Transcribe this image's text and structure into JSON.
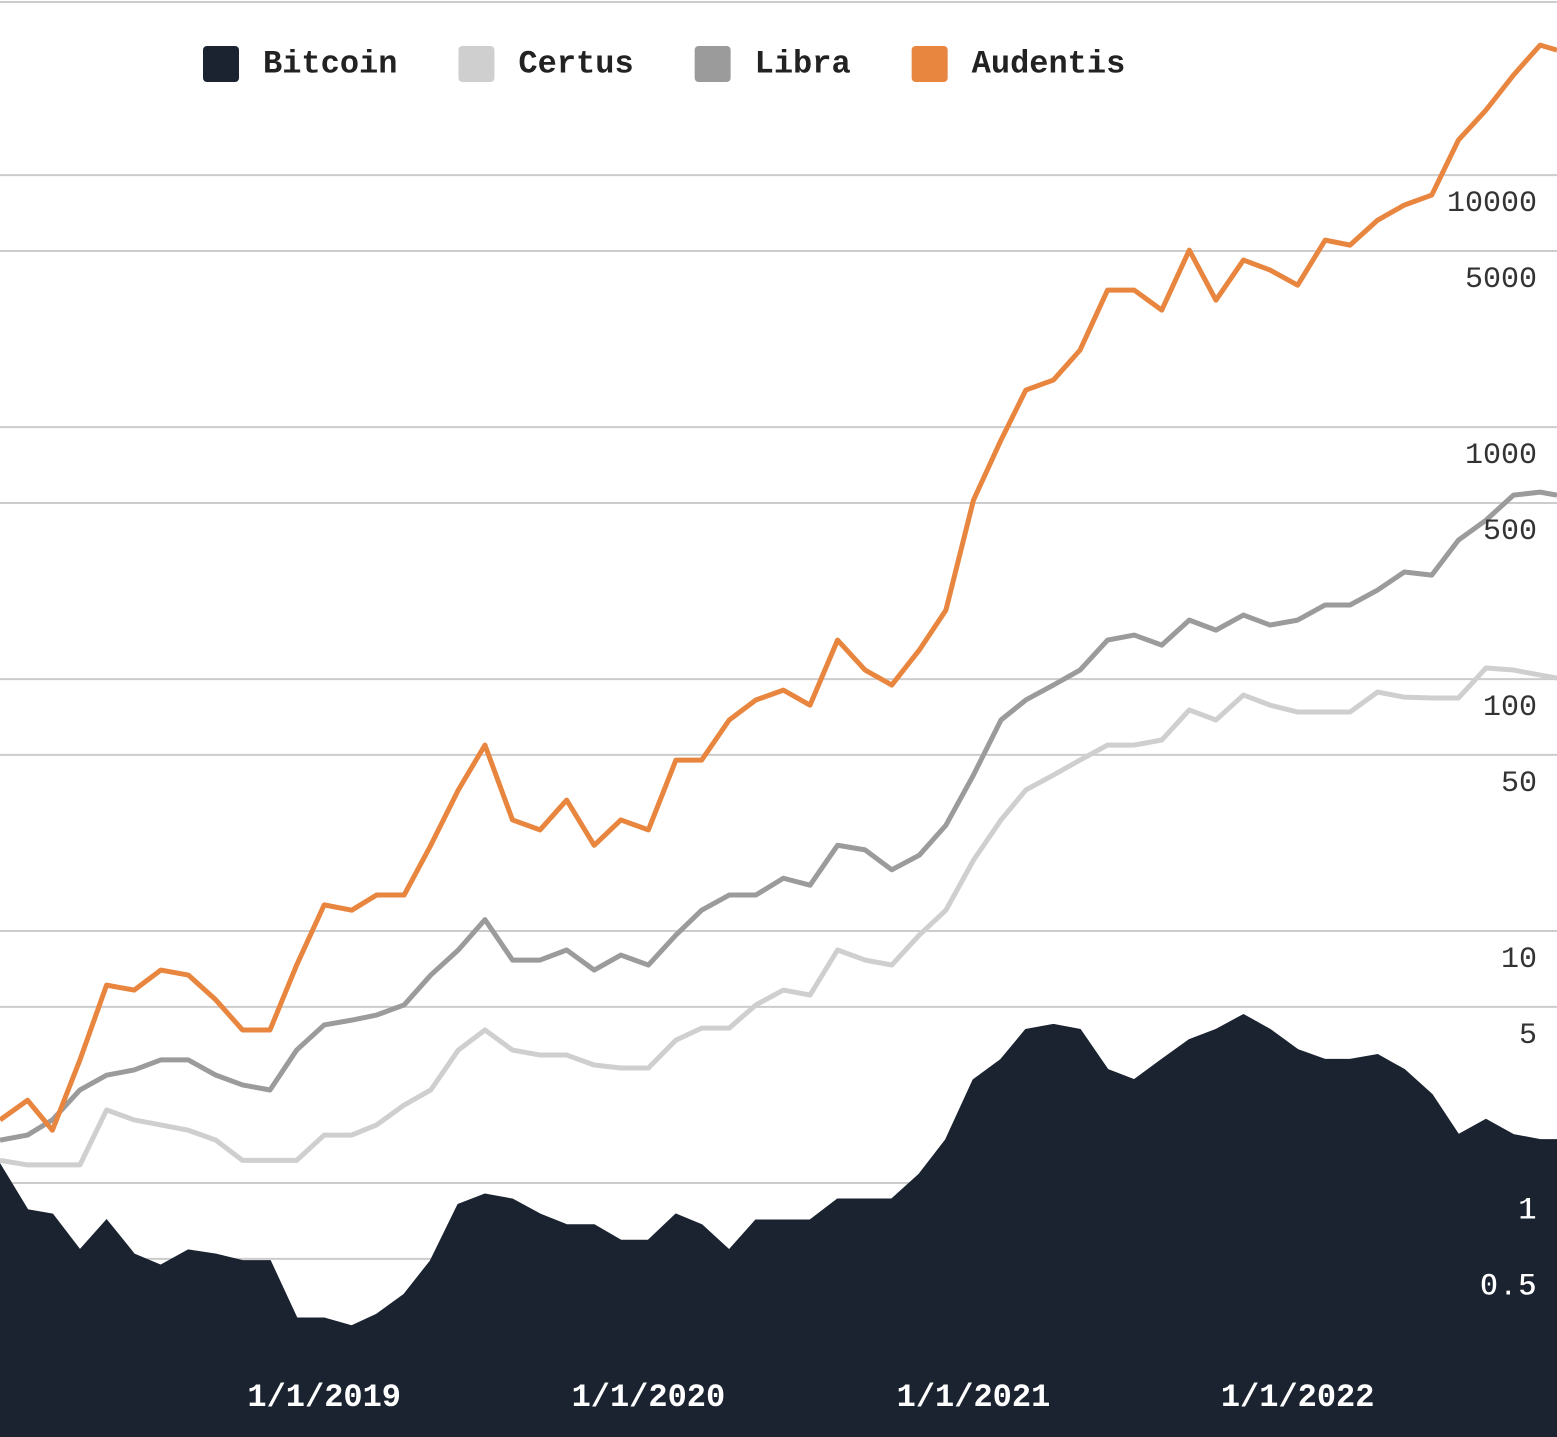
{
  "chart_data": {
    "type": "line",
    "log_y": true,
    "grid": true,
    "legend": "top",
    "x": [
      "2018-01-01",
      "2018-02-01",
      "2018-03-01",
      "2018-04-01",
      "2018-05-01",
      "2018-06-01",
      "2018-07-01",
      "2018-08-01",
      "2018-09-01",
      "2018-10-01",
      "2018-11-01",
      "2018-12-01",
      "2019-01-01",
      "2019-02-01",
      "2019-03-01",
      "2019-04-01",
      "2019-05-01",
      "2019-06-01",
      "2019-07-01",
      "2019-08-01",
      "2019-09-01",
      "2019-10-01",
      "2019-11-01",
      "2019-12-01",
      "2020-01-01",
      "2020-02-01",
      "2020-03-01",
      "2020-04-01",
      "2020-05-01",
      "2020-06-01",
      "2020-07-01",
      "2020-08-01",
      "2020-09-01",
      "2020-10-01",
      "2020-11-01",
      "2020-12-01",
      "2021-01-01",
      "2021-02-01",
      "2021-03-01",
      "2021-04-01",
      "2021-05-01",
      "2021-06-01",
      "2021-07-01",
      "2021-08-01",
      "2021-09-01",
      "2021-10-01",
      "2021-11-01",
      "2021-12-01",
      "2022-01-01",
      "2022-02-01",
      "2022-03-01",
      "2022-04-01",
      "2022-05-01",
      "2022-06-01",
      "2022-07-01",
      "2022-08-01",
      "2022-09-01",
      "2022-10-01",
      "2022-10-20"
    ],
    "xlim": [
      "2018-01-01",
      "2022-10-20"
    ],
    "xticks": [
      {
        "value": "2019-01-01",
        "label": "1/1/2019"
      },
      {
        "value": "2020-01-01",
        "label": "1/1/2020"
      },
      {
        "value": "2021-01-01",
        "label": "1/1/2021"
      },
      {
        "value": "2022-01-01",
        "label": "1/1/2022"
      }
    ],
    "ylim": [
      0.1,
      50000
    ],
    "yticks": [
      0.5,
      1,
      5,
      10,
      50,
      100,
      500,
      1000,
      5000,
      10000
    ],
    "series": [
      {
        "name": "Bitcoin",
        "color": "#1b2330",
        "fill": true,
        "values": [
          1.18,
          0.78,
          0.75,
          0.54,
          0.71,
          0.52,
          0.47,
          0.54,
          0.52,
          0.49,
          0.49,
          0.29,
          0.29,
          0.27,
          0.3,
          0.36,
          0.49,
          0.82,
          0.9,
          0.86,
          0.75,
          0.68,
          0.68,
          0.59,
          0.59,
          0.75,
          0.68,
          0.54,
          0.71,
          0.71,
          0.71,
          0.86,
          0.86,
          0.86,
          1.08,
          1.48,
          2.56,
          3.08,
          4.05,
          4.24,
          4.05,
          2.81,
          2.56,
          3.08,
          3.69,
          4.05,
          4.64,
          4.05,
          3.37,
          3.08,
          3.08,
          3.22,
          2.81,
          2.24,
          1.55,
          1.78,
          1.55,
          1.48,
          1.48
        ]
      },
      {
        "name": "Certus",
        "color": "#cfcfcf",
        "values": [
          1.23,
          1.18,
          1.18,
          1.18,
          1.95,
          1.78,
          1.7,
          1.62,
          1.48,
          1.23,
          1.23,
          1.23,
          1.55,
          1.55,
          1.7,
          2.04,
          2.34,
          3.37,
          4.05,
          3.37,
          3.22,
          3.22,
          2.94,
          2.86,
          2.86,
          3.69,
          4.12,
          4.12,
          5.09,
          5.83,
          5.57,
          8.41,
          7.67,
          7.33,
          9.64,
          12.1,
          19.1,
          27.6,
          36.3,
          41.6,
          47.7,
          54.7,
          54.7,
          57.3,
          75.4,
          68.8,
          86.4,
          78.8,
          74,
          74,
          74,
          88.8,
          84.8,
          84.1,
          84.1,
          110.6,
          108.6,
          103.7,
          100.9
        ]
      },
      {
        "name": "Libra",
        "color": "#9b9b9b",
        "values": [
          1.48,
          1.55,
          1.78,
          2.34,
          2.68,
          2.81,
          3.08,
          3.08,
          2.68,
          2.45,
          2.34,
          3.37,
          4.24,
          4.43,
          4.64,
          5.09,
          6.69,
          8.41,
          11.1,
          7.67,
          7.67,
          8.41,
          7,
          8.03,
          7.33,
          9.64,
          12.1,
          13.9,
          13.9,
          16.2,
          15.2,
          21.9,
          21,
          17.5,
          20,
          26.3,
          41.6,
          68.8,
          82.6,
          94.7,
          108.6,
          142.8,
          149.5,
          136.4,
          171.4,
          156.4,
          179.5,
          163.8,
          171.4,
          196.8,
          196.8,
          225.5,
          266,
          258.6,
          356,
          427,
          537,
          552,
          537
        ]
      },
      {
        "name": "Audentis",
        "color": "#e8853f",
        "values": [
          1.78,
          2.13,
          1.62,
          3.08,
          6.1,
          5.83,
          7,
          6.69,
          5.33,
          4.05,
          4.05,
          7.33,
          12.7,
          12.1,
          13.9,
          13.9,
          21.9,
          36.3,
          54.7,
          27.6,
          25.2,
          33.1,
          21.9,
          27.6,
          25.2,
          47.7,
          47.7,
          68.8,
          82.6,
          90.4,
          78.8,
          142.8,
          108.6,
          94.7,
          130.3,
          187.8,
          513,
          888,
          1403,
          1537,
          2021,
          3497,
          3497,
          2912,
          5039,
          3190,
          4601,
          4199,
          3659,
          5521,
          5275,
          6627,
          7603,
          8335,
          13770,
          18110,
          24940,
          32800,
          31330
        ]
      }
    ]
  }
}
